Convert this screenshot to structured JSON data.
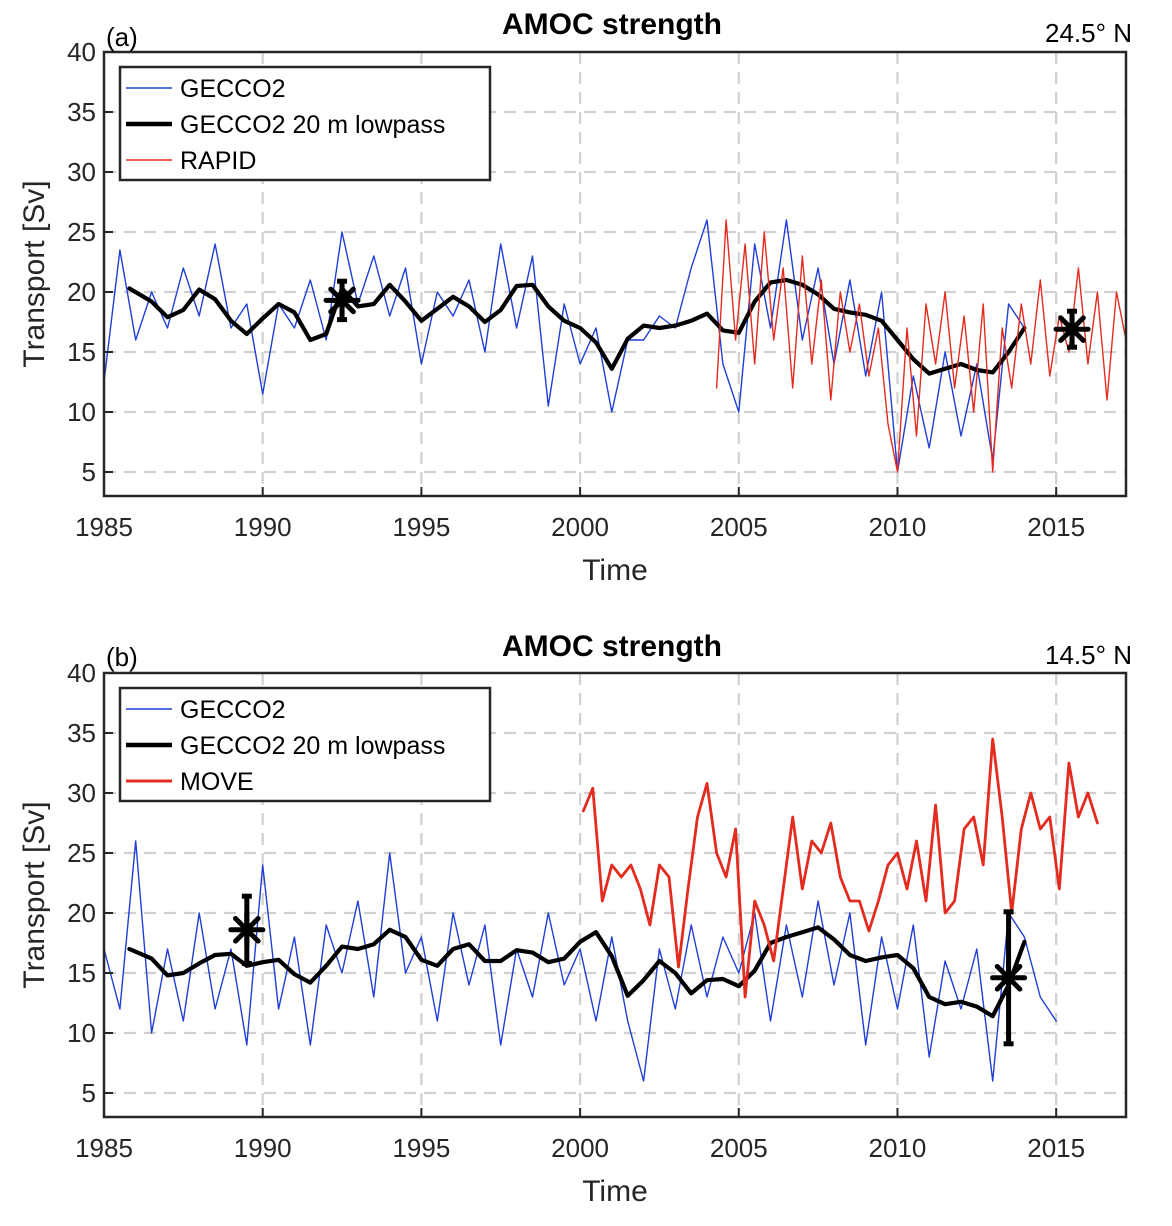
{
  "chart_data": [
    {
      "type": "line",
      "panel_label": "(a)",
      "title": "AMOC strength",
      "annotation": "24.5° N",
      "xlabel": "Time",
      "ylabel": "Transport [Sv]",
      "xlim": [
        1985,
        2017.2
      ],
      "ylim": [
        3,
        40
      ],
      "xticks": [
        1985,
        1990,
        1995,
        2000,
        2005,
        2010,
        2015
      ],
      "yticks": [
        5,
        10,
        15,
        20,
        25,
        30,
        35,
        40
      ],
      "grid": true,
      "legend_position": "top-left",
      "series": [
        {
          "name": "GECCO2",
          "color": "#1f3fd6",
          "style": "thin",
          "x": [
            1985.0,
            1985.5,
            1986.0,
            1986.5,
            1987.0,
            1987.5,
            1988.0,
            1988.5,
            1989.0,
            1989.5,
            1990.0,
            1990.5,
            1991.0,
            1991.5,
            1992.0,
            1992.5,
            1993.0,
            1993.5,
            1994.0,
            1994.5,
            1995.0,
            1995.5,
            1996.0,
            1996.5,
            1997.0,
            1997.5,
            1998.0,
            1998.5,
            1999.0,
            1999.5,
            2000.0,
            2000.5,
            2001.0,
            2001.5,
            2002.0,
            2002.5,
            2003.0,
            2003.5,
            2004.0,
            2004.5,
            2005.0,
            2005.5,
            2006.0,
            2006.5,
            2007.0,
            2007.5,
            2008.0,
            2008.5,
            2009.0,
            2009.5,
            2010.0,
            2010.5,
            2011.0,
            2011.5,
            2012.0,
            2012.5,
            2013.0,
            2013.5,
            2014.0
          ],
          "y": [
            12.5,
            23.5,
            16,
            20,
            17,
            22,
            18,
            24,
            17,
            19,
            11.5,
            19,
            17,
            21,
            16,
            25,
            19,
            23,
            18,
            22,
            14,
            20,
            18,
            21,
            15,
            24,
            17,
            23,
            10.5,
            19,
            14,
            17,
            10,
            16,
            16,
            18,
            17,
            22,
            26,
            14,
            10,
            24,
            17,
            26,
            16,
            22,
            14,
            21,
            13,
            20,
            5,
            13,
            7,
            15,
            8,
            14,
            6,
            19,
            17
          ]
        },
        {
          "name": "GECCO2 20 m lowpass",
          "color": "#000000",
          "style": "thick",
          "x": [
            1985.8,
            1986.5,
            1987.0,
            1987.5,
            1988.0,
            1988.5,
            1989.0,
            1989.5,
            1990.0,
            1990.5,
            1991.0,
            1991.5,
            1992.0,
            1992.5,
            1993.0,
            1993.5,
            1994.0,
            1994.5,
            1995.0,
            1995.5,
            1996.0,
            1996.5,
            1997.0,
            1997.5,
            1998.0,
            1998.5,
            1999.0,
            1999.5,
            2000.0,
            2000.5,
            2001.0,
            2001.5,
            2002.0,
            2002.5,
            2003.0,
            2003.5,
            2004.0,
            2004.5,
            2005.0,
            2005.5,
            2006.0,
            2006.5,
            2007.0,
            2007.5,
            2008.0,
            2008.5,
            2009.0,
            2009.5,
            2010.0,
            2010.5,
            2011.0,
            2011.5,
            2012.0,
            2012.5,
            2013.0,
            2013.5,
            2014.0
          ],
          "y": [
            20.3,
            19.2,
            17.9,
            18.5,
            20.2,
            19.4,
            17.6,
            16.5,
            17.8,
            19.0,
            18.3,
            16.0,
            16.5,
            20.3,
            18.8,
            19.0,
            20.6,
            19.2,
            17.6,
            18.6,
            19.6,
            18.8,
            17.5,
            18.5,
            20.5,
            20.6,
            18.8,
            17.6,
            17.0,
            15.8,
            13.6,
            16.1,
            17.2,
            17.0,
            17.2,
            17.6,
            18.2,
            16.8,
            16.6,
            19.2,
            20.8,
            21.0,
            20.6,
            19.8,
            18.6,
            18.3,
            18.1,
            17.6,
            16.0,
            14.4,
            13.2,
            13.6,
            14.0,
            13.5,
            13.3,
            15.0,
            17.0
          ]
        },
        {
          "name": "RAPID",
          "color": "#e32b1f",
          "style": "thin",
          "x": [
            2004.3,
            2004.6,
            2004.9,
            2005.2,
            2005.5,
            2005.8,
            2006.1,
            2006.4,
            2006.7,
            2007.0,
            2007.3,
            2007.6,
            2007.9,
            2008.2,
            2008.5,
            2008.8,
            2009.1,
            2009.4,
            2009.7,
            2010.0,
            2010.3,
            2010.6,
            2010.9,
            2011.2,
            2011.5,
            2011.8,
            2012.1,
            2012.4,
            2012.7,
            2013.0,
            2013.3,
            2013.6,
            2013.9,
            2014.2,
            2014.5,
            2014.8,
            2015.1,
            2015.4,
            2015.7,
            2016.0,
            2016.3,
            2016.6,
            2016.9,
            2017.2
          ],
          "y": [
            12,
            26,
            16,
            24,
            14,
            25,
            16,
            22,
            12,
            23,
            14,
            21,
            11,
            20,
            15,
            19,
            13,
            17,
            9,
            5,
            17,
            8,
            19,
            14,
            20,
            12,
            18,
            10,
            19,
            5,
            17,
            12,
            19,
            14,
            21,
            13,
            18,
            15,
            22,
            14,
            20,
            11,
            20,
            16
          ]
        }
      ],
      "markers": [
        {
          "x": 1992.5,
          "y": 19.3,
          "error": 1.6
        },
        {
          "x": 2015.5,
          "y": 16.9,
          "error": 1.5
        }
      ]
    },
    {
      "type": "line",
      "panel_label": "(b)",
      "title": "AMOC strength",
      "annotation": "14.5° N",
      "xlabel": "Time",
      "ylabel": "Transport [Sv]",
      "xlim": [
        1985,
        2017.2
      ],
      "ylim": [
        3,
        40
      ],
      "xticks": [
        1985,
        1990,
        1995,
        2000,
        2005,
        2010,
        2015
      ],
      "yticks": [
        5,
        10,
        15,
        20,
        25,
        30,
        35,
        40
      ],
      "grid": true,
      "legend_position": "top-left",
      "series": [
        {
          "name": "GECCO2",
          "color": "#1f3fd6",
          "style": "thin",
          "x": [
            1985.0,
            1985.5,
            1986.0,
            1986.5,
            1987.0,
            1987.5,
            1988.0,
            1988.5,
            1989.0,
            1989.5,
            1990.0,
            1990.5,
            1991.0,
            1991.5,
            1992.0,
            1992.5,
            1993.0,
            1993.5,
            1994.0,
            1994.5,
            1995.0,
            1995.5,
            1996.0,
            1996.5,
            1997.0,
            1997.5,
            1998.0,
            1998.5,
            1999.0,
            1999.5,
            2000.0,
            2000.5,
            2001.0,
            2001.5,
            2002.0,
            2002.5,
            2003.0,
            2003.5,
            2004.0,
            2004.5,
            2005.0,
            2005.5,
            2006.0,
            2006.5,
            2007.0,
            2007.5,
            2008.0,
            2008.5,
            2009.0,
            2009.5,
            2010.0,
            2010.5,
            2011.0,
            2011.5,
            2012.0,
            2012.5,
            2013.0,
            2013.5,
            2014.0,
            2014.5,
            2015.0
          ],
          "y": [
            17,
            12,
            26,
            10,
            17,
            11,
            20,
            12,
            17,
            9,
            24,
            12,
            18,
            9,
            19,
            15,
            21,
            13,
            25,
            15,
            18,
            11,
            20,
            14,
            19,
            9,
            17,
            13,
            20,
            14,
            17,
            11,
            18,
            11,
            6,
            17,
            12,
            19,
            13,
            18,
            15,
            20,
            11,
            19,
            13,
            21,
            14,
            20,
            9,
            18,
            12,
            19,
            8,
            16,
            12,
            17,
            6,
            20,
            18,
            13,
            11
          ]
        },
        {
          "name": "GECCO2 20 m lowpass",
          "color": "#000000",
          "style": "thick",
          "x": [
            1985.8,
            1986.5,
            1987.0,
            1987.5,
            1988.0,
            1988.5,
            1989.0,
            1989.5,
            1990.0,
            1990.5,
            1991.0,
            1991.5,
            1992.0,
            1992.5,
            1993.0,
            1993.5,
            1994.0,
            1994.5,
            1995.0,
            1995.5,
            1996.0,
            1996.5,
            1997.0,
            1997.5,
            1998.0,
            1998.5,
            1999.0,
            1999.5,
            2000.0,
            2000.5,
            2001.0,
            2001.5,
            2002.0,
            2002.5,
            2003.0,
            2003.5,
            2004.0,
            2004.5,
            2005.0,
            2005.5,
            2006.0,
            2006.5,
            2007.0,
            2007.5,
            2008.0,
            2008.5,
            2009.0,
            2009.5,
            2010.0,
            2010.5,
            2011.0,
            2011.5,
            2012.0,
            2012.5,
            2013.0,
            2013.5,
            2014.0
          ],
          "y": [
            17.0,
            16.2,
            14.8,
            15.0,
            15.8,
            16.5,
            16.6,
            15.6,
            15.9,
            16.1,
            14.9,
            14.2,
            15.6,
            17.2,
            17.0,
            17.4,
            18.6,
            18.0,
            16.1,
            15.6,
            17.0,
            17.4,
            16.0,
            16.0,
            16.9,
            16.7,
            15.9,
            16.2,
            17.6,
            18.4,
            16.4,
            13.1,
            14.4,
            16.0,
            15.0,
            13.3,
            14.4,
            14.5,
            13.9,
            15.2,
            17.5,
            18.0,
            18.4,
            18.8,
            17.8,
            16.5,
            16.0,
            16.3,
            16.5,
            15.4,
            13.0,
            12.4,
            12.6,
            12.2,
            11.4,
            14.0,
            17.6
          ]
        },
        {
          "name": "MOVE",
          "color": "#e32b1f",
          "style": "medium",
          "x": [
            2000.1,
            2000.4,
            2000.7,
            2001.0,
            2001.3,
            2001.6,
            2001.9,
            2002.2,
            2002.5,
            2002.8,
            2003.1,
            2003.4,
            2003.7,
            2004.0,
            2004.3,
            2004.6,
            2004.9,
            2005.2,
            2005.5,
            2005.8,
            2006.1,
            2006.4,
            2006.7,
            2007.0,
            2007.3,
            2007.6,
            2007.9,
            2008.2,
            2008.5,
            2008.8,
            2009.1,
            2009.4,
            2009.7,
            2010.0,
            2010.3,
            2010.6,
            2010.9,
            2011.2,
            2011.5,
            2011.8,
            2012.1,
            2012.4,
            2012.7,
            2013.0,
            2013.3,
            2013.6,
            2013.9,
            2014.2,
            2014.5,
            2014.8,
            2015.1,
            2015.4,
            2015.7,
            2016.0,
            2016.3
          ],
          "y": [
            28.5,
            30.4,
            21,
            24,
            23,
            24,
            22,
            19,
            24,
            23,
            15.5,
            22,
            28,
            30.8,
            25,
            23,
            27,
            13,
            21,
            19,
            16,
            22,
            28,
            22,
            26,
            25,
            27.5,
            23,
            21,
            21,
            18.5,
            21,
            24,
            25,
            22,
            26,
            21,
            29,
            20,
            21,
            27,
            28,
            24,
            34.5,
            28,
            20,
            27,
            30,
            27,
            28,
            22,
            32.5,
            28,
            30,
            27.5
          ]
        }
      ],
      "markers": [
        {
          "x": 1989.5,
          "y": 18.6,
          "error": 2.8
        },
        {
          "x": 2013.5,
          "y": 14.6,
          "error": 5.5
        }
      ]
    }
  ]
}
